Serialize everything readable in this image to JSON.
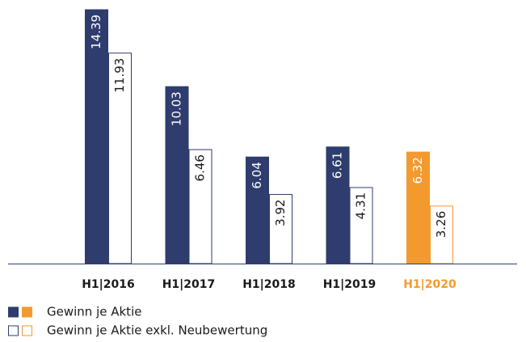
{
  "chart_data": {
    "type": "bar",
    "categories": [
      "H1|2016",
      "H1|2017",
      "H1|2018",
      "H1|2019",
      "H1|2020"
    ],
    "series": [
      {
        "name": "Gewinn je Aktie",
        "color": "#2e3d6e",
        "colors": [
          "#2e3d6e",
          "#2e3d6e",
          "#2e3d6e",
          "#2e3d6e",
          "#f39a2e"
        ],
        "values": [
          14.39,
          10.03,
          6.04,
          6.61,
          6.32
        ]
      },
      {
        "name": "Gewinn je Aktie exkl. Neubewertung",
        "color": "#ffffff",
        "colors": [
          "#2e3d6e",
          "#2e3d6e",
          "#2e3d6e",
          "#2e3d6e",
          "#f39a2e"
        ],
        "values": [
          11.93,
          6.46,
          3.92,
          4.31,
          3.26
        ]
      }
    ],
    "legend": "bottom-left"
  }
}
